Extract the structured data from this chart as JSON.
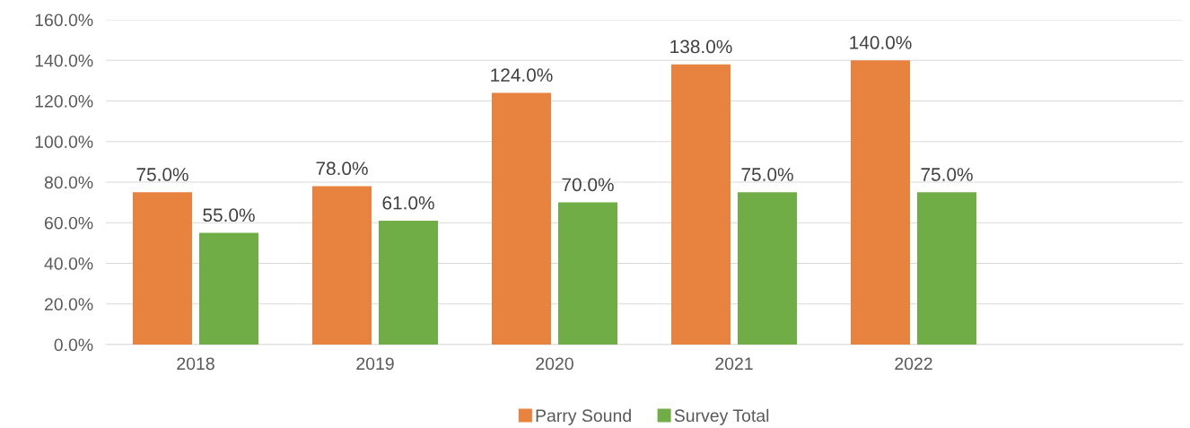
{
  "chart_data": {
    "type": "bar",
    "categories": [
      "2018",
      "2019",
      "2020",
      "2021",
      "2022",
      null
    ],
    "series": [
      {
        "name": "Parry Sound",
        "color": "#e8823f",
        "values": [
          75,
          78,
          124,
          138,
          140,
          null
        ],
        "value_labels": [
          "75.0%",
          "78.0%",
          "124.0%",
          "138.0%",
          "140.0%",
          null
        ]
      },
      {
        "name": "Survey Total",
        "color": "#70ad47",
        "values": [
          55,
          61,
          70,
          75,
          75,
          null
        ],
        "value_labels": [
          "55.0%",
          "61.0%",
          "70.0%",
          "75.0%",
          "75.0%",
          null
        ]
      }
    ],
    "ylim": [
      0,
      160
    ],
    "yticks": [
      {
        "value": 0,
        "label": "0.0%"
      },
      {
        "value": 20,
        "label": "20.0%"
      },
      {
        "value": 40,
        "label": "40.0%"
      },
      {
        "value": 60,
        "label": "60.0%"
      },
      {
        "value": 80,
        "label": "80.0%"
      },
      {
        "value": 100,
        "label": "100.0%"
      },
      {
        "value": 120,
        "label": "120.0%"
      },
      {
        "value": 140,
        "label": "140.0%"
      },
      {
        "value": 160,
        "label": "160.0%"
      }
    ],
    "grid": "y",
    "legend": "bottom"
  }
}
